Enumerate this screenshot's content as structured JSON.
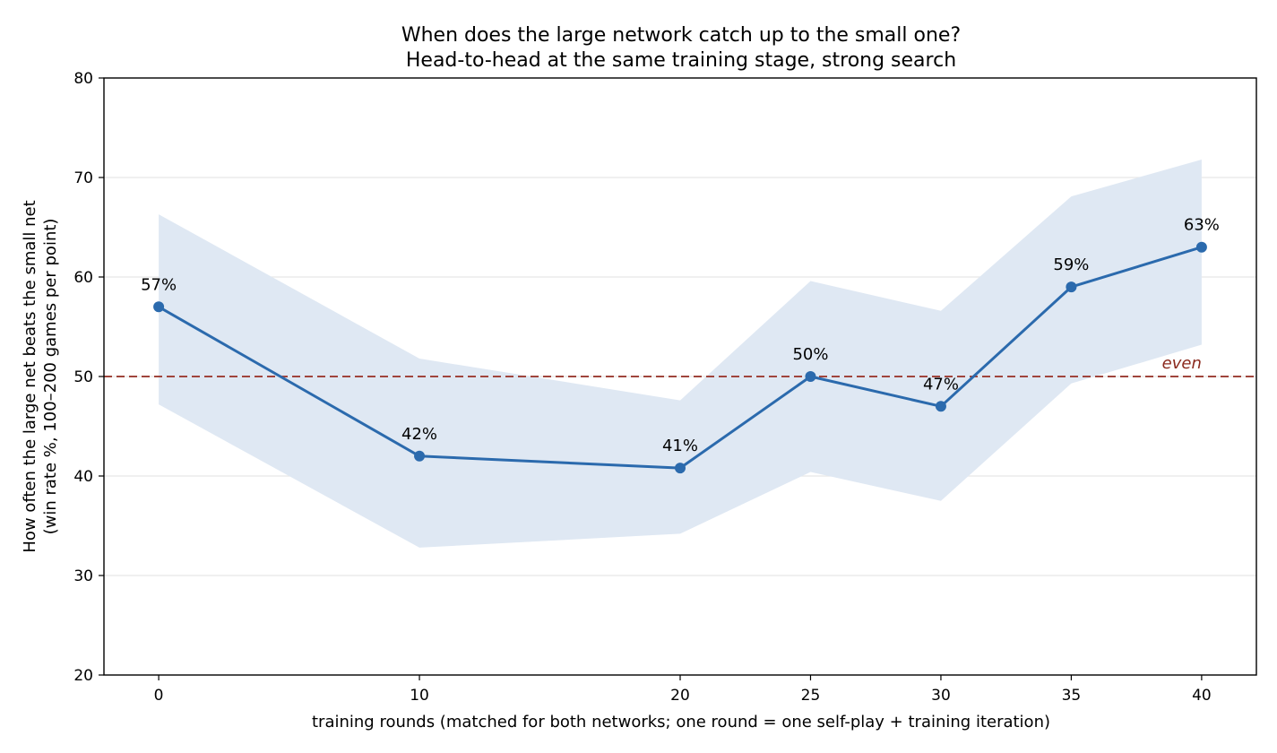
{
  "chart_data": {
    "type": "line",
    "title": "When does the large network catch up to the small one?",
    "subtitle": "Head-to-head at the same training stage, strong search",
    "xlabel": "training rounds (matched for both networks; one round = one self-play + training iteration)",
    "ylabel": "How often the large net beats the small net",
    "ylabel_2": "(win rate %, 100–200 games per point)",
    "x": [
      0,
      10,
      20,
      25,
      30,
      35,
      40
    ],
    "x_ticks": [
      "0",
      "10",
      "20",
      "25",
      "30",
      "35",
      "40"
    ],
    "xlim": [
      -2.1,
      42.1
    ],
    "ylim": [
      20,
      80
    ],
    "y_ticks": [
      "20",
      "30",
      "40",
      "50",
      "60",
      "70",
      "80"
    ],
    "series": [
      {
        "values": [
          57,
          42,
          40.8,
          50,
          47,
          59,
          63
        ],
        "labels": [
          "57%",
          "42%",
          "41%",
          "50%",
          "47%",
          "59%",
          "63%"
        ],
        "band_upper": [
          66.3,
          51.8,
          47.6,
          59.6,
          56.6,
          68.1,
          71.8
        ],
        "band_lower": [
          47.2,
          32.8,
          34.2,
          40.4,
          37.5,
          49.3,
          53.2
        ],
        "color": "#2b6aad",
        "band_color": "#dfe8f3"
      }
    ],
    "reference_line": {
      "y": 50,
      "label": "even",
      "color": "#a0453c",
      "label_color": "#8b2a1e",
      "style": "dashed"
    },
    "grid": "horizontal",
    "grid_color": "#e8e8e8",
    "legend": "none"
  }
}
